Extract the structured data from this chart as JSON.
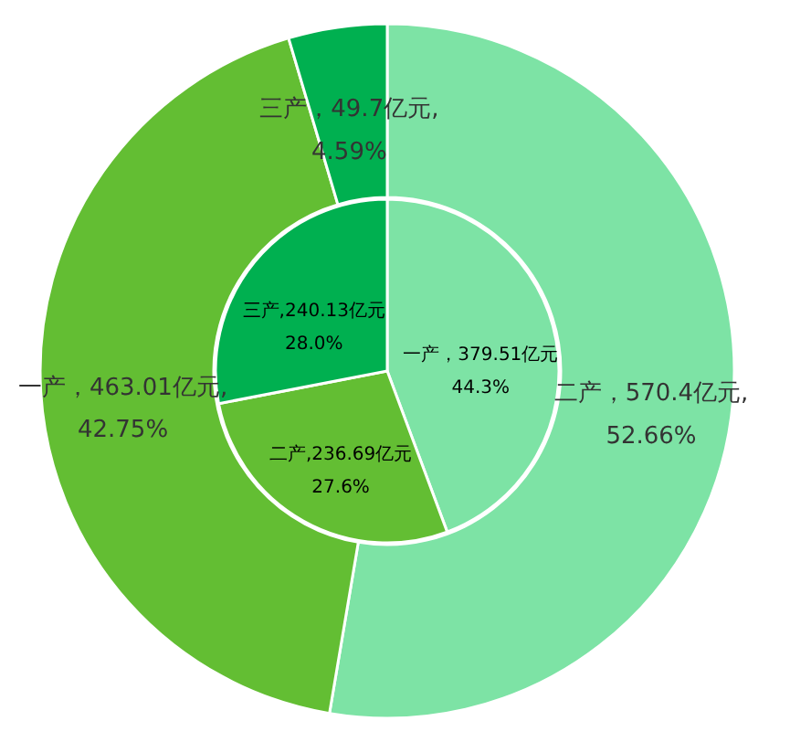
{
  "chart_data": [
    {
      "type": "donut",
      "categories": [
        "二产",
        "一产",
        "三产"
      ],
      "values": [
        570.4,
        463.01,
        49.7
      ],
      "colors": [
        "#7de3a5",
        "#63be33",
        "#00b050"
      ],
      "value_labels": [
        "，570.4亿元,\n52.66%",
        "，463.01亿元,\n42.75%",
        "，49.7亿元,\n4.59%"
      ]
    },
    {
      "type": "pie",
      "categories": [
        "一产",
        "二产",
        "三产"
      ],
      "values": [
        379.51,
        236.69,
        240.13
      ],
      "colors": [
        "#7de3a5",
        "#63be33",
        "#00b050"
      ],
      "value_labels": [
        "，379.51亿元\n44.3%",
        ",236.69亿元\n27.6%",
        ",240.13亿元\n28.0%"
      ]
    }
  ]
}
